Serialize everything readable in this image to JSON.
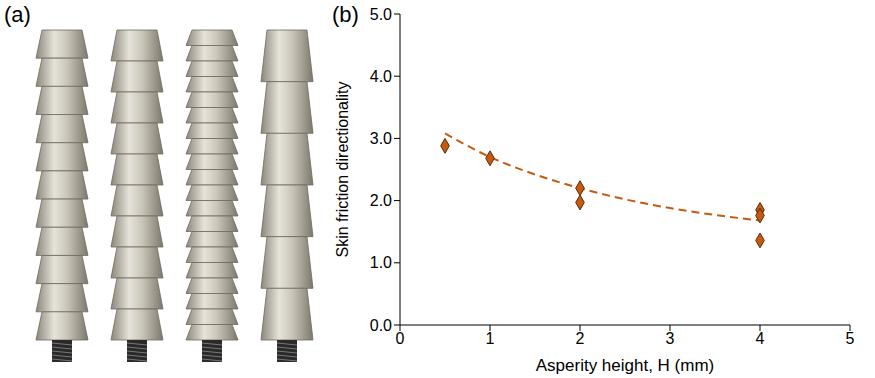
{
  "figure_labels": [
    "(a)",
    "(b)"
  ],
  "chart_data": {
    "type": "scatter",
    "x_label": "Asperity height, H (mm)",
    "y_label": "Skin friction directionality",
    "xlim": [
      0,
      5
    ],
    "xticks": [
      0,
      1,
      2,
      3,
      4,
      5
    ],
    "ylim": [
      0,
      5
    ],
    "yticks": [
      {
        "value": 0,
        "label": "0.0"
      },
      {
        "value": 1,
        "label": "1.0"
      },
      {
        "value": 2,
        "label": "2.0"
      },
      {
        "value": 3,
        "label": "3.0"
      },
      {
        "value": 4,
        "label": "4.0"
      },
      {
        "value": 5,
        "label": "5.0"
      }
    ],
    "grid": false,
    "series": [
      {
        "type": "scatter",
        "marker": "diamond",
        "color": "#c55a11",
        "x": [
          0.5,
          1,
          2,
          2,
          4,
          4,
          4
        ],
        "values": [
          2.88,
          2.68,
          2.2,
          1.97,
          1.85,
          1.76,
          1.36
        ]
      },
      {
        "type": "line",
        "line_style": "dashed",
        "color": "#c55a11",
        "x": [
          0.5,
          1,
          1.5,
          2,
          2.5,
          3,
          3.5,
          4
        ],
        "values": [
          3.08,
          2.7,
          2.42,
          2.2,
          2.02,
          1.88,
          1.77,
          1.68
        ]
      }
    ]
  }
}
